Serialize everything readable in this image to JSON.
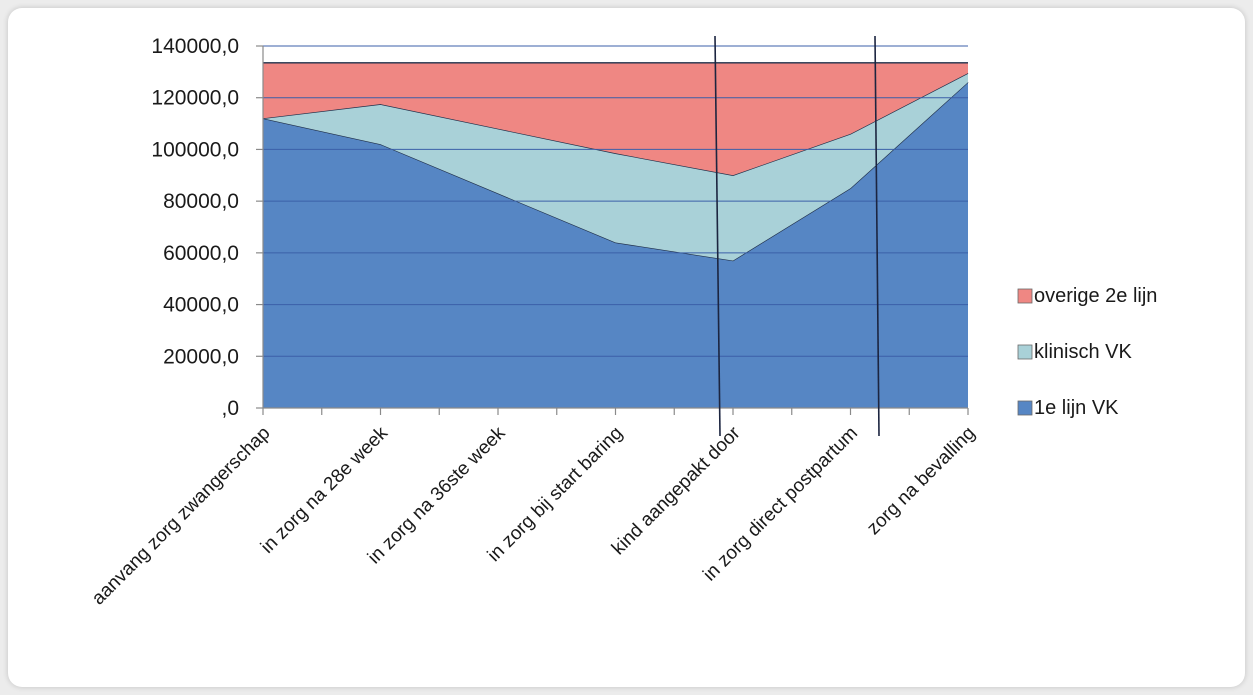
{
  "chart_data": {
    "type": "area",
    "stacked": true,
    "title": "",
    "xlabel": "",
    "ylabel": "",
    "categories": [
      "aanvang zorg zwangerschap",
      "in zorg na 28e week",
      "in zorg na 36ste week",
      "in zorg bij start baring",
      "kind aangepakt door",
      "in zorg direct postpartum",
      "zorg na bevalling"
    ],
    "series": [
      {
        "name": "1e lijn VK",
        "color": "#5686c4",
        "values": [
          112000,
          102000,
          83000,
          64000,
          57000,
          85000,
          126000
        ]
      },
      {
        "name": "klinisch VK",
        "color": "#a9d1d8",
        "values": [
          0,
          15500,
          25000,
          34500,
          33000,
          21000,
          3500
        ]
      },
      {
        "name": "overige 2e lijn",
        "color": "#ef8783",
        "values": [
          21500,
          16000,
          25500,
          35000,
          43500,
          27500,
          4000
        ]
      }
    ],
    "ylim": [
      0,
      140000
    ],
    "yticks": [
      0,
      20000,
      40000,
      60000,
      80000,
      100000,
      120000,
      140000
    ],
    "ytick_labels": [
      ",0",
      "20000,0",
      "40000,0",
      "60000,0",
      "80000,0",
      "100000,0",
      "120000,0",
      "140000,0"
    ],
    "grid": true,
    "legend_position": "right",
    "vertical_markers": true
  }
}
